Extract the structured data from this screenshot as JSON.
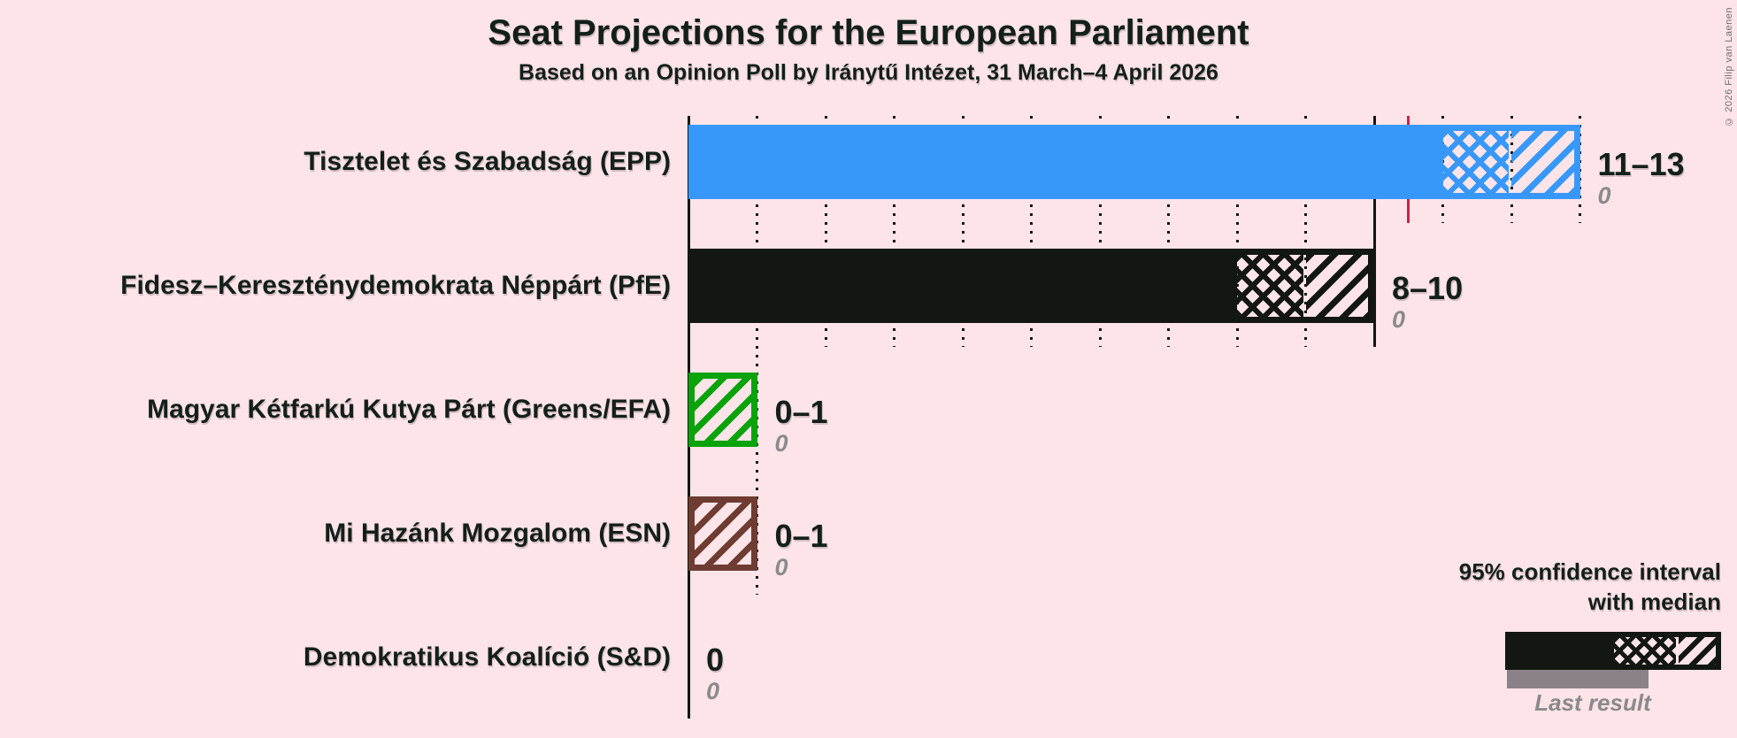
{
  "title": "Seat Projections for the European Parliament",
  "subtitle": "Based on an Opinion Poll by Iránytű Intézet, 31 March–4 April 2026",
  "copyright": "© 2026 Filip van Laenen",
  "legend": {
    "ci_line1": "95% confidence interval",
    "ci_line2": "with median",
    "last_result": "Last result"
  },
  "colors": {
    "background": "#fce4e8",
    "ink": "#131711",
    "text": "#132019",
    "epp_blue": "#3898fa",
    "pfe_black": "#131711",
    "greens_green": "#0aa30a",
    "esn_brown": "#6e3c32",
    "majority_red": "#d51c4c",
    "last_result_gray": "#8b8289",
    "muted_text": "#8a8a8a"
  },
  "chart_data": {
    "type": "bar",
    "orientation": "horizontal",
    "x_axis": {
      "min": 0,
      "max": 13,
      "gridline_interval": 1,
      "major_interval": 10,
      "majority_threshold": 10.5
    },
    "parties": [
      {
        "name": "Tisztelet és Szabadság (EPP)",
        "ci_low": 11,
        "median": 12,
        "ci_high": 13,
        "value_label": "11–13",
        "last_result": 0,
        "last_result_label": "0",
        "color": "#3898fa",
        "style": "filled"
      },
      {
        "name": "Fidesz–Kereszténydemokrata Néppárt (PfE)",
        "ci_low": 8,
        "median": 9,
        "ci_high": 10,
        "value_label": "8–10",
        "last_result": 0,
        "last_result_label": "0",
        "color": "#131711",
        "style": "filled"
      },
      {
        "name": "Magyar Kétfarkú Kutya Párt (Greens/EFA)",
        "ci_low": 0,
        "median": 0,
        "ci_high": 1,
        "value_label": "0–1",
        "last_result": 0,
        "last_result_label": "0",
        "color": "#0aa30a",
        "style": "outline"
      },
      {
        "name": "Mi Hazánk Mozgalom (ESN)",
        "ci_low": 0,
        "median": 0,
        "ci_high": 1,
        "value_label": "0–1",
        "last_result": 0,
        "last_result_label": "0",
        "color": "#6e3c32",
        "style": "outline"
      },
      {
        "name": "Demokratikus Koalíció (S&D)",
        "ci_low": 0,
        "median": 0,
        "ci_high": 0,
        "value_label": "0",
        "last_result": 0,
        "last_result_label": "0",
        "color": null,
        "style": "none"
      }
    ]
  }
}
